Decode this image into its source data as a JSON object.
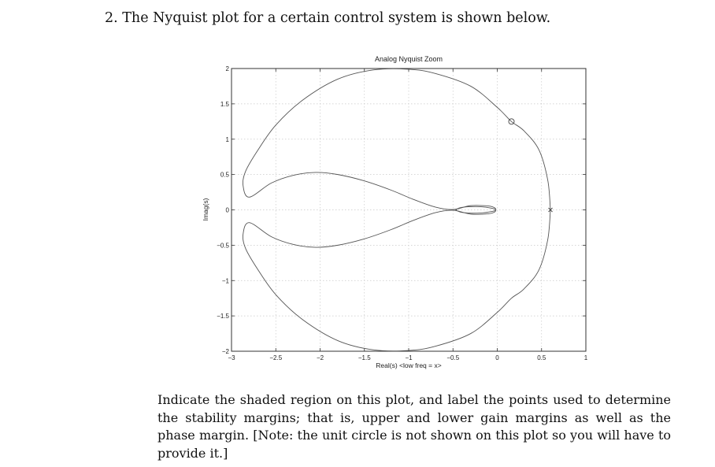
{
  "question": "2. The Nyquist plot for a certain control system is shown below.",
  "paragraph": "Indicate the shaded region on this plot, and label the points used to determine the stability margins; that is, upper and lower gain margins as well as the phase margin. [Note: the unit circle is not shown on this plot so you will have to provide it.]",
  "chart_data": {
    "type": "line",
    "title": "Analog Nyquist Zoom",
    "xlabel": "Real(s) <low freq = x>",
    "ylabel": "Imag(s)",
    "xlim": [
      -3,
      1
    ],
    "ylim": [
      -2,
      2
    ],
    "xticks": [
      -3,
      -2.5,
      -2,
      -1.5,
      -1,
      -0.5,
      0,
      0.5,
      1
    ],
    "xtick_labels": [
      "−3",
      "−2.5",
      "−2",
      "−1.5",
      "−1",
      "−0.5",
      "0",
      "0.5",
      "1"
    ],
    "yticks": [
      2,
      1.5,
      1,
      0.5,
      0,
      -0.5,
      -1,
      -1.5,
      -2
    ],
    "ytick_labels": [
      "2",
      "1.5",
      "1",
      "0.5",
      "0",
      "−0.5",
      "−1",
      "−1.5",
      "−2"
    ],
    "grid": true,
    "series": [
      {
        "path": "upper",
        "x": [
          0.6,
          0.57,
          0.47,
          0.3,
          0.16,
          0.0,
          -0.3,
          -0.7,
          -1.0,
          -1.4,
          -1.8,
          -2.2,
          -2.5,
          -2.7,
          -2.84,
          -2.87,
          -2.8,
          -2.55,
          -2.3,
          -2.05,
          -1.8,
          -1.5,
          -1.2,
          -0.95,
          -0.7,
          -0.5,
          -0.3,
          -0.1,
          -0.03,
          -0.02,
          -0.05,
          -0.2,
          -0.4,
          -0.47
        ],
        "y": [
          0.0,
          0.42,
          0.85,
          1.12,
          1.25,
          1.45,
          1.75,
          1.93,
          1.99,
          1.98,
          1.85,
          1.55,
          1.2,
          0.85,
          0.55,
          0.35,
          0.18,
          0.38,
          0.49,
          0.53,
          0.5,
          0.41,
          0.28,
          0.15,
          0.04,
          0.005,
          0.06,
          0.055,
          0.03,
          0.0,
          -0.02,
          -0.045,
          -0.035,
          0.0
        ]
      },
      {
        "path": "lower (mirror)",
        "x": [
          0.6,
          0.57,
          0.47,
          0.3,
          0.16,
          0.0,
          -0.3,
          -0.7,
          -1.0,
          -1.4,
          -1.8,
          -2.2,
          -2.5,
          -2.7,
          -2.84,
          -2.87,
          -2.8,
          -2.55,
          -2.3,
          -2.05,
          -1.8,
          -1.5,
          -1.2,
          -0.95,
          -0.7,
          -0.5,
          -0.3,
          -0.1,
          -0.03,
          -0.02,
          -0.05,
          -0.2,
          -0.4,
          -0.47
        ],
        "y": [
          0.0,
          -0.42,
          -0.85,
          -1.12,
          -1.25,
          -1.45,
          -1.75,
          -1.93,
          -1.99,
          -1.98,
          -1.85,
          -1.55,
          -1.2,
          -0.85,
          -0.55,
          -0.35,
          -0.18,
          -0.38,
          -0.49,
          -0.53,
          -0.5,
          -0.41,
          -0.28,
          -0.15,
          -0.04,
          -0.005,
          -0.06,
          -0.055,
          -0.03,
          0.0,
          0.02,
          0.045,
          0.035,
          0.0
        ]
      }
    ],
    "markers": [
      {
        "symbol": "o",
        "x": 0.16,
        "y": 1.25
      },
      {
        "symbol": "x",
        "x": 0.6,
        "y": 0.0
      }
    ]
  }
}
